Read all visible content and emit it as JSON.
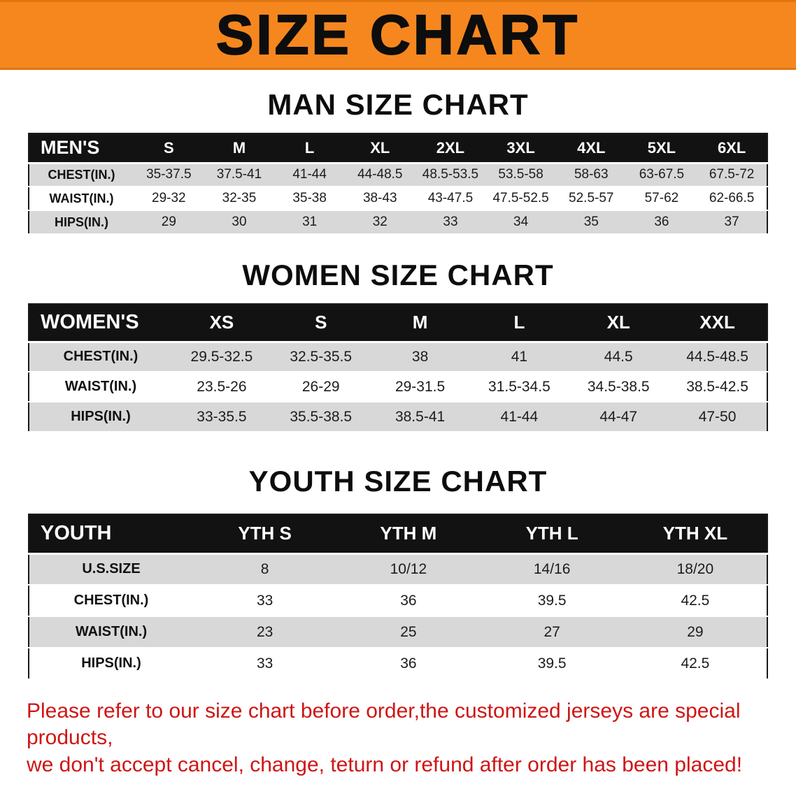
{
  "banner": {
    "title": "SIZE CHART",
    "bg_color": "#f6871f",
    "text_color": "#0d0d0d"
  },
  "colors": {
    "table_header_bg": "#121212",
    "table_header_text": "#ffffff",
    "row_shade": "#d8d8d8",
    "footer_text": "#cf1515"
  },
  "sections": [
    {
      "heading": "MAN SIZE CHART",
      "table": {
        "header": [
          "MEN'S",
          "S",
          "M",
          "L",
          "XL",
          "2XL",
          "3XL",
          "4XL",
          "5XL",
          "6XL"
        ],
        "rows": [
          [
            "CHEST(IN.)",
            "35-37.5",
            "37.5-41",
            "41-44",
            "44-48.5",
            "48.5-53.5",
            "53.5-58",
            "58-63",
            "63-67.5",
            "67.5-72"
          ],
          [
            "WAIST(IN.)",
            "29-32",
            "32-35",
            "35-38",
            "38-43",
            "43-47.5",
            "47.5-52.5",
            "52.5-57",
            "57-62",
            "62-66.5"
          ],
          [
            "HIPS(IN.)",
            "29",
            "30",
            "31",
            "32",
            "33",
            "34",
            "35",
            "36",
            "37"
          ]
        ]
      }
    },
    {
      "heading": "WOMEN SIZE CHART",
      "table": {
        "header": [
          "WOMEN'S",
          "XS",
          "S",
          "M",
          "L",
          "XL",
          "XXL"
        ],
        "rows": [
          [
            "CHEST(IN.)",
            "29.5-32.5",
            "32.5-35.5",
            "38",
            "41",
            "44.5",
            "44.5-48.5"
          ],
          [
            "WAIST(IN.)",
            "23.5-26",
            "26-29",
            "29-31.5",
            "31.5-34.5",
            "34.5-38.5",
            "38.5-42.5"
          ],
          [
            "HIPS(IN.)",
            "33-35.5",
            "35.5-38.5",
            "38.5-41",
            "41-44",
            "44-47",
            "47-50"
          ]
        ]
      }
    },
    {
      "heading": "YOUTH SIZE CHART",
      "table": {
        "header": [
          "YOUTH",
          "YTH S",
          "YTH M",
          "YTH L",
          "YTH XL"
        ],
        "rows": [
          [
            "U.S.SIZE",
            "8",
            "10/12",
            "14/16",
            "18/20"
          ],
          [
            "CHEST(IN.)",
            "33",
            "36",
            "39.5",
            "42.5"
          ],
          [
            "WAIST(IN.)",
            "23",
            "25",
            "27",
            "29"
          ],
          [
            "HIPS(IN.)",
            "33",
            "36",
            "39.5",
            "42.5"
          ]
        ]
      }
    }
  ],
  "footer": {
    "line1": "Please refer to our size chart before order,the customized jerseys are special products,",
    "line2": "we don't accept cancel, change, teturn or refund after order has been placed!"
  }
}
